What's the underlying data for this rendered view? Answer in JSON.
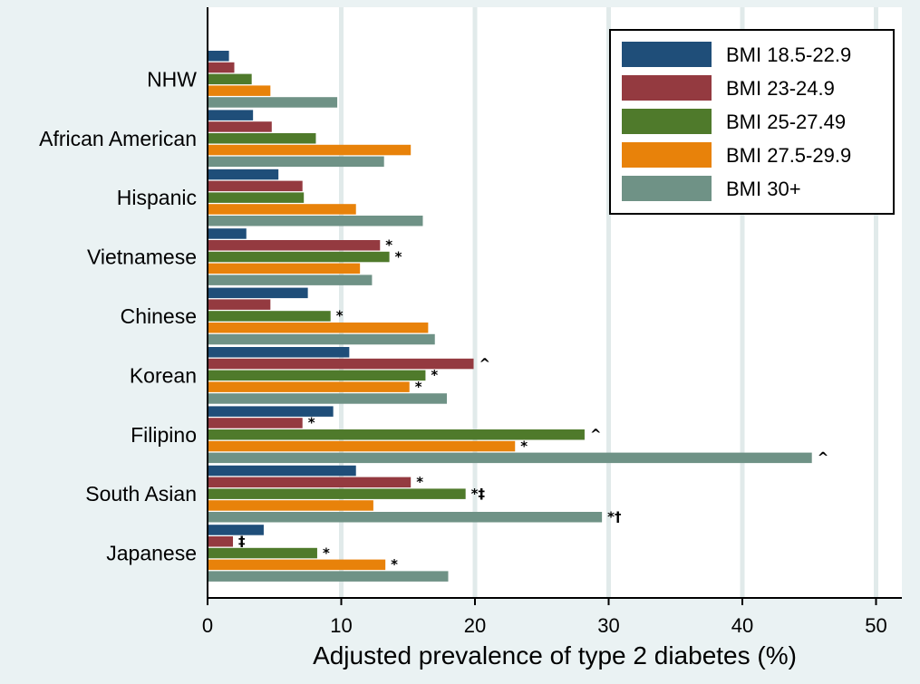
{
  "chart_data": {
    "type": "bar",
    "orientation": "horizontal",
    "title": "",
    "xlabel": "Adjusted prevalence of type 2 diabetes (%)",
    "ylabel": "",
    "xlim": [
      0,
      52
    ],
    "xticks": [
      0,
      10,
      20,
      30,
      40,
      50
    ],
    "grid": true,
    "legend_position": "top-right",
    "categories": [
      "NHW",
      "African American",
      "Hispanic",
      "Vietnamese",
      "Chinese",
      "Korean",
      "Filipino",
      "South Asian",
      "Japanese"
    ],
    "series": [
      {
        "name": "BMI 18.5-22.9",
        "color": "#1f4e79",
        "values": [
          1.6,
          3.4,
          5.3,
          2.9,
          7.5,
          10.6,
          9.4,
          11.1,
          4.2
        ],
        "annotations": [
          "",
          "",
          "",
          "",
          "",
          "",
          "",
          "",
          ""
        ]
      },
      {
        "name": "BMI 23-24.9",
        "color": "#943a40",
        "values": [
          2.0,
          4.8,
          7.1,
          12.9,
          4.7,
          19.9,
          7.1,
          15.2,
          1.9
        ],
        "annotations": [
          "",
          "",
          "",
          "*",
          "",
          "^",
          "*",
          "*",
          "‡"
        ]
      },
      {
        "name": "BMI 25-27.49",
        "color": "#4f7a2b",
        "values": [
          3.3,
          8.1,
          7.2,
          13.6,
          9.2,
          16.3,
          28.2,
          19.3,
          8.2
        ],
        "annotations": [
          "",
          "",
          "",
          "*",
          "*",
          "*",
          "^",
          "*‡",
          "*"
        ]
      },
      {
        "name": "BMI 27.5-29.9",
        "color": "#e8820a",
        "values": [
          4.7,
          15.2,
          11.1,
          11.4,
          16.5,
          15.1,
          23.0,
          12.4,
          13.3
        ],
        "annotations": [
          "",
          "",
          "",
          "",
          "",
          "*",
          "*",
          "",
          "*"
        ]
      },
      {
        "name": "BMI 30+",
        "color": "#6f9286",
        "values": [
          9.7,
          13.2,
          16.1,
          12.3,
          17.0,
          17.9,
          45.2,
          29.5,
          18.0
        ],
        "annotations": [
          "",
          "",
          "",
          "",
          "",
          "",
          "^",
          "*†",
          ""
        ]
      }
    ]
  },
  "colors": {
    "background": "#eaf2f3",
    "plot_background": "#ffffff",
    "grid": "#e1eaea",
    "axis": "#000000"
  }
}
